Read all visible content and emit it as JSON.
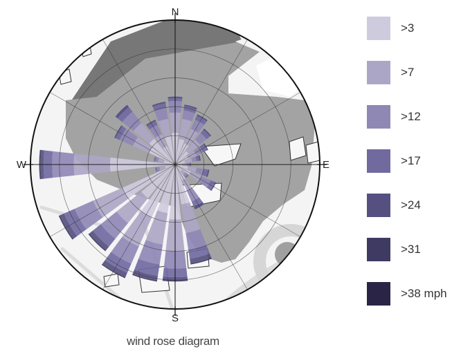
{
  "chart_data": {
    "type": "wind-rose",
    "title": "wind rose diagram",
    "compass_labels": {
      "n": "N",
      "e": "E",
      "s": "S",
      "w": "W"
    },
    "bin_labels": [
      ">3",
      ">7",
      ">12",
      ">17",
      ">24",
      ">31",
      ">38 mph"
    ],
    "bin_colors": [
      "#cfcbde",
      "#aca6c6",
      "#8f88b5",
      "#706a9f",
      "#555080",
      "#3f3a62",
      "#2a2547"
    ],
    "directions_deg": [
      0,
      15,
      30,
      45,
      60,
      75,
      90,
      105,
      120,
      135,
      150,
      165,
      180,
      195,
      210,
      225,
      240,
      255,
      270,
      285,
      300,
      315,
      330,
      345
    ],
    "cumulative_radii": [
      [
        0.22,
        0.36,
        0.44,
        0.46,
        0.47,
        0.47,
        0.47
      ],
      [
        0.18,
        0.32,
        0.38,
        0.41,
        0.42,
        0.42,
        0.42
      ],
      [
        0.16,
        0.27,
        0.34,
        0.37,
        0.38,
        0.38,
        0.38
      ],
      [
        0.12,
        0.22,
        0.28,
        0.31,
        0.32,
        0.32,
        0.32
      ],
      [
        0.1,
        0.16,
        0.21,
        0.24,
        0.25,
        0.25,
        0.25
      ],
      [
        0.07,
        0.12,
        0.15,
        0.17,
        0.18,
        0.18,
        0.18
      ],
      [
        0.05,
        0.08,
        0.1,
        0.11,
        0.11,
        0.11,
        0.11
      ],
      [
        0.09,
        0.15,
        0.2,
        0.23,
        0.24,
        0.24,
        0.24
      ],
      [
        0.12,
        0.2,
        0.27,
        0.3,
        0.31,
        0.31,
        0.31
      ],
      [
        0.06,
        0.09,
        0.11,
        0.12,
        0.12,
        0.12,
        0.12
      ],
      [
        0.12,
        0.2,
        0.28,
        0.32,
        0.34,
        0.34,
        0.34
      ],
      [
        0.28,
        0.48,
        0.6,
        0.66,
        0.69,
        0.7,
        0.7
      ],
      [
        0.38,
        0.6,
        0.72,
        0.78,
        0.8,
        0.81,
        0.81
      ],
      [
        0.34,
        0.56,
        0.7,
        0.78,
        0.81,
        0.82,
        0.82
      ],
      [
        0.4,
        0.62,
        0.75,
        0.82,
        0.85,
        0.86,
        0.86
      ],
      [
        0.3,
        0.52,
        0.66,
        0.73,
        0.76,
        0.77,
        0.77
      ],
      [
        0.4,
        0.62,
        0.76,
        0.84,
        0.87,
        0.88,
        0.88
      ],
      [
        0.07,
        0.11,
        0.13,
        0.14,
        0.14,
        0.14,
        0.14
      ],
      [
        0.45,
        0.7,
        0.85,
        0.91,
        0.93,
        0.94,
        0.94
      ],
      [
        0.08,
        0.12,
        0.14,
        0.15,
        0.15,
        0.15,
        0.15
      ],
      [
        0.2,
        0.32,
        0.42,
        0.45,
        0.46,
        0.46,
        0.46
      ],
      [
        0.23,
        0.37,
        0.47,
        0.51,
        0.53,
        0.53,
        0.53
      ],
      [
        0.14,
        0.23,
        0.3,
        0.33,
        0.34,
        0.34,
        0.34
      ],
      [
        0.2,
        0.32,
        0.4,
        0.43,
        0.44,
        0.44,
        0.44
      ]
    ],
    "ring_count": 5,
    "spoke_step_deg": 30,
    "background": "aerial map"
  }
}
